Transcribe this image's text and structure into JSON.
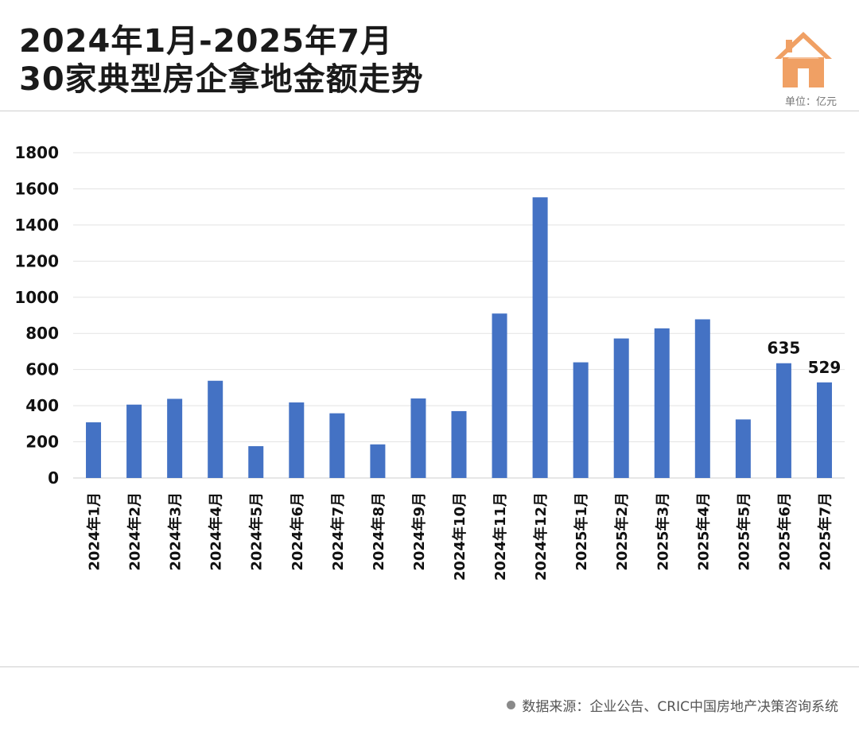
{
  "header": {
    "title_line1": "2024年1月-2025年7月",
    "title_line2": "30家典型房企拿地金额走势",
    "unit": "单位：亿元",
    "logo_icon": "house-icon"
  },
  "footer": {
    "source": "数据来源：企业公告、CRIC中国房地产决策咨询系统"
  },
  "colors": {
    "bar": "#4472c4",
    "logo": "#f0a064",
    "grid": "#e3e3e3"
  },
  "chart_data": {
    "type": "bar",
    "categories": [
      "2024年1月",
      "2024年2月",
      "2024年3月",
      "2024年4月",
      "2024年5月",
      "2024年6月",
      "2024年7月",
      "2024年8月",
      "2024年9月",
      "2024年10月",
      "2024年11月",
      "2024年12月",
      "2025年1月",
      "2025年2月",
      "2025年3月",
      "2025年4月",
      "2025年5月",
      "2025年6月",
      "2025年7月"
    ],
    "values": [
      308,
      406,
      438,
      538,
      176,
      418,
      358,
      186,
      440,
      370,
      910,
      1553,
      640,
      772,
      828,
      878,
      324,
      635,
      529
    ],
    "data_labels": [
      null,
      null,
      null,
      null,
      null,
      null,
      null,
      null,
      null,
      null,
      null,
      null,
      null,
      null,
      null,
      null,
      null,
      "635",
      "529"
    ],
    "yticks": [
      0,
      200,
      400,
      600,
      800,
      1000,
      1200,
      1400,
      1600,
      1800
    ],
    "ylim": [
      0,
      1800
    ],
    "title": "2024年1月-2025年7月 30家典型房企拿地金额走势",
    "xlabel": "",
    "ylabel": "",
    "grid": true,
    "legend": "none"
  }
}
